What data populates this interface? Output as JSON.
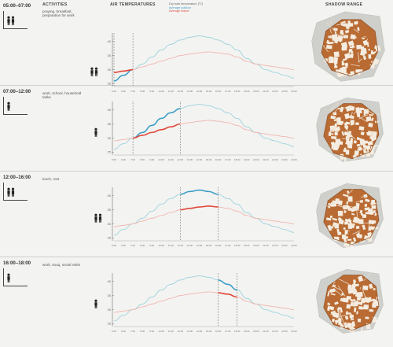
{
  "headers": {
    "activities": "ACTIVITIES",
    "air_temperatures": "AIR TEMPERATURES",
    "shadow_range": "SHADOW RANGE"
  },
  "legend": {
    "title": "Dry bulb temperature [°C]",
    "outdoor": "Average outdoor",
    "indoor": "Average indoor"
  },
  "colors": {
    "outdoor": "#9bd2dc",
    "outdoor_highlight": "#3e9fc6",
    "indoor": "#f0b5ad",
    "indoor_highlight": "#e04a3c",
    "building": "#b96b33",
    "ground": "#cfcfcb"
  },
  "periods": [
    {
      "time": "05:00–07:00",
      "activity": "praying, breakfast, preparation for work",
      "people": 2
    },
    {
      "time": "07:00–12:00",
      "activity": "work, school, household tasks",
      "people": 1
    },
    {
      "time": "12:00–16:00",
      "activity": "lunch, rest",
      "people": 2
    },
    {
      "time": "16:00–18:00",
      "activity": "work, souq, social visits",
      "people": 1
    }
  ],
  "chart_data": [
    {
      "type": "line",
      "x": [
        "5:00",
        "6:00",
        "7:00",
        "8:00",
        "9:00",
        "10:00",
        "11:00",
        "12:00",
        "13:00",
        "14:00",
        "15:00",
        "16:00",
        "17:00",
        "18:00",
        "19:00",
        "20:00",
        "21:00",
        "22:00",
        "23:00",
        "24:00"
      ],
      "yticks": [
        25,
        30,
        35,
        40
      ],
      "ylim": [
        24,
        43
      ],
      "series": [
        {
          "name": "Average outdoor",
          "values": [
            26,
            28,
            30,
            32,
            34.5,
            37,
            39,
            40.5,
            41.5,
            42,
            41.5,
            40.5,
            39,
            37,
            34,
            32,
            30,
            29,
            28,
            27
          ]
        },
        {
          "name": "Average indoor",
          "values": [
            29,
            29.5,
            30,
            31,
            32,
            33,
            34,
            35,
            35.5,
            36,
            36.3,
            36,
            35.5,
            34.5,
            33,
            32,
            31.5,
            31,
            30.5,
            30
          ]
        }
      ],
      "highlight": {
        "from": "5:00",
        "to": "7:00"
      }
    },
    {
      "type": "line",
      "x": [
        "5:00",
        "6:00",
        "7:00",
        "8:00",
        "9:00",
        "10:00",
        "11:00",
        "12:00",
        "13:00",
        "14:00",
        "15:00",
        "16:00",
        "17:00",
        "18:00",
        "19:00",
        "20:00",
        "21:00",
        "22:00",
        "23:00",
        "24:00"
      ],
      "yticks": [
        25,
        30,
        35,
        40
      ],
      "ylim": [
        24,
        43
      ],
      "series": [
        {
          "name": "Average outdoor",
          "values": [
            26,
            28,
            30,
            32,
            34.5,
            37,
            39,
            40.5,
            41.5,
            42,
            41.5,
            40.5,
            39,
            37,
            34,
            32,
            30,
            29,
            28,
            27
          ]
        },
        {
          "name": "Average indoor",
          "values": [
            29,
            29.5,
            30,
            31,
            32,
            33,
            34,
            35,
            35.5,
            36,
            36.3,
            36,
            35.5,
            34.5,
            33,
            32,
            31.5,
            31,
            30.5,
            30
          ]
        }
      ],
      "highlight": {
        "from": "7:00",
        "to": "12:00"
      }
    },
    {
      "type": "line",
      "x": [
        "5:00",
        "6:00",
        "7:00",
        "8:00",
        "9:00",
        "10:00",
        "11:00",
        "12:00",
        "13:00",
        "14:00",
        "15:00",
        "16:00",
        "17:00",
        "18:00",
        "19:00",
        "20:00",
        "21:00",
        "22:00",
        "23:00",
        "24:00"
      ],
      "yticks": [
        25,
        30,
        35,
        40
      ],
      "ylim": [
        24,
        43
      ],
      "series": [
        {
          "name": "Average outdoor",
          "values": [
            26,
            28,
            30,
            32,
            34.5,
            37,
            39,
            40.5,
            41.5,
            42,
            41.5,
            40.5,
            39,
            37,
            34,
            32,
            30,
            29,
            28,
            27
          ]
        },
        {
          "name": "Average indoor",
          "values": [
            29,
            29.5,
            30,
            31,
            32,
            33,
            34,
            35,
            35.5,
            36,
            36.3,
            36,
            35.5,
            34.5,
            33,
            32,
            31.5,
            31,
            30.5,
            30
          ]
        }
      ],
      "highlight": {
        "from": "12:00",
        "to": "16:00"
      }
    },
    {
      "type": "line",
      "x": [
        "5:00",
        "6:00",
        "7:00",
        "8:00",
        "9:00",
        "10:00",
        "11:00",
        "12:00",
        "13:00",
        "14:00",
        "15:00",
        "16:00",
        "17:00",
        "18:00",
        "19:00",
        "20:00",
        "21:00",
        "22:00",
        "23:00",
        "24:00"
      ],
      "yticks": [
        25,
        30,
        35,
        40
      ],
      "ylim": [
        24,
        43
      ],
      "series": [
        {
          "name": "Average outdoor",
          "values": [
            26,
            28,
            30,
            32,
            34.5,
            37,
            39,
            40.5,
            41.5,
            42,
            41.5,
            40.5,
            39,
            37,
            34,
            32,
            30,
            29,
            28,
            27
          ]
        },
        {
          "name": "Average indoor",
          "values": [
            29,
            29.5,
            30,
            31,
            32,
            33,
            34,
            35,
            35.5,
            36,
            36.3,
            36,
            35.5,
            34.5,
            33,
            32,
            31.5,
            31,
            30.5,
            30
          ]
        }
      ],
      "highlight": {
        "from": "16:00",
        "to": "18:00"
      }
    }
  ]
}
